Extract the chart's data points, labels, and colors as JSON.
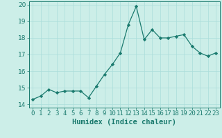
{
  "x": [
    0,
    1,
    2,
    3,
    4,
    5,
    6,
    7,
    8,
    9,
    10,
    11,
    12,
    13,
    14,
    15,
    16,
    17,
    18,
    19,
    20,
    21,
    22,
    23
  ],
  "y": [
    14.3,
    14.5,
    14.9,
    14.7,
    14.8,
    14.8,
    14.8,
    14.4,
    15.1,
    15.8,
    16.4,
    17.1,
    18.8,
    19.9,
    17.9,
    18.5,
    18.0,
    18.0,
    18.1,
    18.2,
    17.5,
    17.1,
    16.9,
    17.1
  ],
  "line_color": "#1a7a6e",
  "marker": "D",
  "marker_size": 2.2,
  "bg_color": "#cceee8",
  "grid_color": "#aaddda",
  "xlabel": "Humidex (Indice chaleur)",
  "xlim": [
    -0.5,
    23.5
  ],
  "ylim": [
    13.8,
    20.2
  ],
  "yticks": [
    14,
    15,
    16,
    17,
    18,
    19,
    20
  ],
  "xlabel_fontsize": 7.5,
  "tick_fontsize": 6.5
}
